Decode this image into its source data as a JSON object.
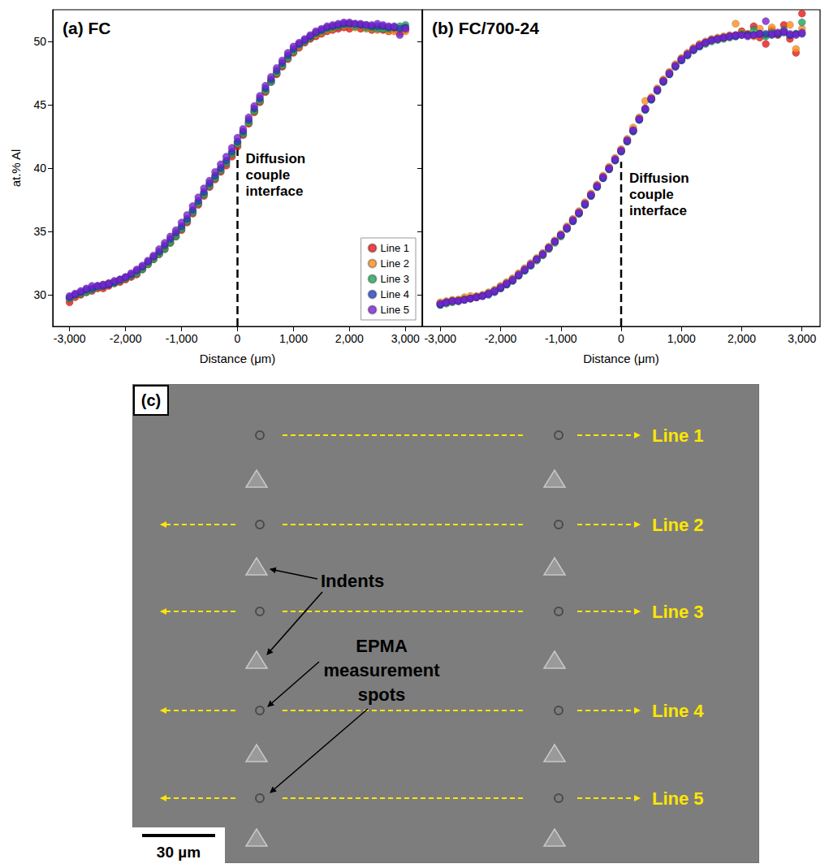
{
  "chart_data": [
    {
      "type": "scatter",
      "title": "(a) FC",
      "x_label": "Distance (μm)",
      "y_label": "at.% Al",
      "xlim": [
        -3300,
        3300
      ],
      "xticks": [
        -3000,
        -2000,
        -1000,
        0,
        1000,
        2000,
        3000
      ],
      "ylim": [
        27.5,
        52.5
      ],
      "yticks": [
        30,
        35,
        40,
        45,
        50
      ],
      "marker": "circle",
      "legend": "bottom-right",
      "annotation": {
        "text": "Diffusion couple interface",
        "x": 0,
        "y_end": 42,
        "line_style": "dashed"
      },
      "x": [
        -3000,
        -2900,
        -2800,
        -2700,
        -2600,
        -2500,
        -2400,
        -2300,
        -2200,
        -2100,
        -2000,
        -1900,
        -1800,
        -1700,
        -1600,
        -1500,
        -1400,
        -1300,
        -1200,
        -1100,
        -1000,
        -900,
        -800,
        -700,
        -600,
        -500,
        -400,
        -300,
        -200,
        -100,
        0,
        100,
        200,
        300,
        400,
        500,
        600,
        700,
        800,
        900,
        1000,
        1100,
        1200,
        1300,
        1400,
        1500,
        1600,
        1700,
        1800,
        1900,
        2000,
        2100,
        2200,
        2300,
        2400,
        2500,
        2600,
        2700,
        2800,
        2900,
        3000
      ],
      "series": [
        {
          "name": "Line 1",
          "color": "#e8161b",
          "values": [
            29.4,
            29.8,
            30.0,
            30.2,
            30.3,
            30.5,
            30.5,
            30.7,
            30.9,
            31.0,
            31.2,
            31.4,
            31.6,
            32.0,
            32.4,
            32.8,
            33.2,
            33.6,
            34.1,
            34.6,
            35.1,
            35.7,
            36.4,
            37.1,
            37.8,
            38.5,
            39.1,
            39.7,
            40.2,
            40.9,
            41.7,
            42.6,
            43.5,
            44.4,
            45.2,
            46.0,
            46.8,
            47.4,
            48.0,
            48.6,
            49.1,
            49.5,
            49.9,
            50.2,
            50.4,
            50.6,
            50.8,
            50.9,
            51.0,
            51.1,
            51.0,
            51.2,
            51.0,
            51.1,
            50.9,
            51.0,
            50.9,
            50.8,
            50.9,
            50.7,
            50.9
          ]
        },
        {
          "name": "Line 2",
          "color": "#ff8c1a",
          "values": [
            29.7,
            29.9,
            30.1,
            30.3,
            30.5,
            30.6,
            30.8,
            30.9,
            31.0,
            31.2,
            31.3,
            31.5,
            31.8,
            32.1,
            32.5,
            32.9,
            33.3,
            33.8,
            34.3,
            34.8,
            35.3,
            35.9,
            36.6,
            37.3,
            38.0,
            38.7,
            39.3,
            39.9,
            40.5,
            41.2,
            42.0,
            42.8,
            43.6,
            44.5,
            45.3,
            46.1,
            46.9,
            47.5,
            48.1,
            48.7,
            49.2,
            49.6,
            50.0,
            50.3,
            50.5,
            50.7,
            50.9,
            51.0,
            51.2,
            51.2,
            51.3,
            51.1,
            51.2,
            51.0,
            51.0,
            50.9,
            51.0,
            50.8,
            50.8,
            50.7,
            50.8
          ]
        },
        {
          "name": "Line 3",
          "color": "#1fa35b",
          "values": [
            29.7,
            30.0,
            30.1,
            30.2,
            30.4,
            30.6,
            30.7,
            30.9,
            30.9,
            31.1,
            31.3,
            31.5,
            31.7,
            32.0,
            32.4,
            32.8,
            33.2,
            33.6,
            34.1,
            34.6,
            35.2,
            35.8,
            36.5,
            37.2,
            37.9,
            38.6,
            39.2,
            39.8,
            40.4,
            41.1,
            41.9,
            42.7,
            43.6,
            44.5,
            45.3,
            46.1,
            46.8,
            47.5,
            48.1,
            48.7,
            49.2,
            49.7,
            50.0,
            50.3,
            50.6,
            50.8,
            51.0,
            51.1,
            51.2,
            51.3,
            51.4,
            51.2,
            51.3,
            51.1,
            51.1,
            51.0,
            51.0,
            51.0,
            51.1,
            51.2,
            51.3
          ]
        },
        {
          "name": "Line 4",
          "color": "#1f3fbf",
          "values": [
            29.8,
            30.0,
            30.2,
            30.4,
            30.5,
            30.7,
            30.7,
            30.8,
            31.0,
            31.2,
            31.4,
            31.6,
            31.9,
            32.2,
            32.6,
            33.0,
            33.4,
            33.9,
            34.4,
            34.9,
            35.4,
            36.0,
            36.7,
            37.4,
            38.1,
            38.8,
            39.4,
            40.0,
            40.6,
            41.3,
            42.1,
            42.9,
            43.8,
            44.7,
            45.5,
            46.3,
            47.0,
            47.7,
            48.3,
            48.9,
            49.4,
            49.8,
            50.1,
            50.4,
            50.7,
            50.9,
            51.1,
            51.2,
            51.3,
            51.4,
            51.4,
            51.4,
            51.3,
            51.3,
            51.2,
            51.2,
            51.2,
            51.1,
            51.1,
            51.0,
            51.1
          ]
        },
        {
          "name": "Line 5",
          "color": "#7b1fd1",
          "values": [
            29.9,
            30.1,
            30.3,
            30.5,
            30.7,
            30.7,
            30.8,
            30.9,
            31.1,
            31.2,
            31.4,
            31.7,
            32.0,
            32.3,
            32.7,
            33.1,
            33.6,
            34.1,
            34.6,
            35.1,
            35.7,
            36.3,
            37.0,
            37.7,
            38.4,
            39.0,
            39.7,
            40.3,
            40.9,
            41.6,
            42.4,
            43.1,
            44.0,
            44.9,
            45.7,
            46.5,
            47.2,
            47.9,
            48.5,
            49.1,
            49.6,
            49.9,
            50.2,
            50.5,
            50.8,
            51.0,
            51.2,
            51.3,
            51.4,
            51.5,
            51.5,
            51.4,
            51.4,
            51.3,
            51.3,
            51.4,
            51.3,
            51.2,
            51.2,
            50.5,
            51.0
          ]
        }
      ]
    },
    {
      "type": "scatter",
      "title": "(b) FC/700-24",
      "x_label": "Distance (μm)",
      "xlim": [
        -3300,
        3300
      ],
      "xticks": [
        -3000,
        -2000,
        -1000,
        0,
        1000,
        2000,
        3000
      ],
      "ylim": [
        27.5,
        52.5
      ],
      "yticks": [
        30,
        35,
        40,
        45,
        50
      ],
      "marker": "circle",
      "tick_labels": "x",
      "annotation": {
        "text": "Diffusion couple interface",
        "x": 0,
        "y_end": 40.5,
        "line_style": "dashed"
      },
      "x": [
        -3000,
        -2900,
        -2800,
        -2700,
        -2600,
        -2500,
        -2400,
        -2300,
        -2200,
        -2100,
        -2000,
        -1900,
        -1800,
        -1700,
        -1600,
        -1500,
        -1400,
        -1300,
        -1200,
        -1100,
        -1000,
        -900,
        -800,
        -700,
        -600,
        -500,
        -400,
        -300,
        -200,
        -100,
        0,
        100,
        200,
        300,
        400,
        500,
        600,
        700,
        800,
        900,
        1000,
        1100,
        1200,
        1300,
        1400,
        1500,
        1600,
        1700,
        1800,
        1900,
        2000,
        2100,
        2200,
        2300,
        2400,
        2500,
        2600,
        2700,
        2800,
        2900,
        3000
      ],
      "series": [
        {
          "name": "Line 1",
          "color": "#e8161b",
          "values": [
            29.3,
            29.4,
            29.5,
            29.6,
            29.7,
            29.7,
            29.8,
            29.9,
            30.1,
            30.3,
            30.6,
            30.9,
            31.2,
            31.6,
            32.0,
            32.4,
            32.8,
            33.2,
            33.7,
            34.2,
            34.7,
            35.3,
            35.9,
            36.5,
            37.2,
            37.9,
            38.6,
            39.3,
            40.0,
            40.7,
            41.4,
            42.2,
            43.0,
            43.9,
            44.7,
            45.5,
            46.2,
            46.9,
            47.5,
            48.1,
            48.6,
            49.0,
            49.4,
            49.7,
            49.9,
            50.1,
            50.2,
            50.3,
            50.4,
            50.5,
            50.8,
            50.6,
            51.2,
            50.3,
            49.8,
            50.9,
            50.5,
            51.3,
            50.2,
            49.1,
            52.2
          ]
        },
        {
          "name": "Line 2",
          "color": "#ff8c1a",
          "values": [
            29.4,
            29.5,
            29.6,
            29.6,
            29.8,
            29.9,
            29.9,
            30.0,
            30.2,
            30.4,
            30.7,
            31.0,
            31.3,
            31.7,
            32.1,
            32.5,
            32.9,
            33.3,
            33.8,
            34.3,
            34.8,
            35.4,
            36.0,
            36.6,
            37.3,
            38.0,
            38.7,
            39.4,
            40.1,
            40.8,
            41.5,
            42.3,
            43.2,
            44.0,
            45.3,
            45.6,
            46.3,
            47.0,
            47.6,
            48.2,
            48.7,
            49.1,
            49.5,
            49.8,
            50.0,
            50.2,
            50.3,
            50.4,
            50.5,
            51.4,
            50.7,
            50.5,
            50.4,
            51.0,
            50.5,
            51.1,
            50.6,
            50.8,
            51.3,
            49.4,
            51.0
          ]
        },
        {
          "name": "Line 3",
          "color": "#1fa35b",
          "values": [
            29.2,
            29.3,
            29.4,
            29.5,
            29.6,
            29.7,
            29.8,
            29.9,
            30.1,
            30.3,
            30.5,
            30.8,
            31.1,
            31.5,
            31.9,
            32.3,
            32.7,
            33.1,
            33.6,
            34.1,
            34.6,
            35.2,
            35.8,
            36.4,
            37.1,
            37.8,
            38.5,
            39.2,
            39.9,
            40.6,
            41.3,
            42.1,
            42.9,
            43.8,
            44.6,
            45.4,
            46.1,
            46.8,
            47.4,
            48.0,
            48.5,
            48.9,
            49.3,
            49.6,
            49.8,
            50.0,
            50.1,
            50.2,
            50.3,
            50.4,
            50.6,
            50.5,
            50.9,
            50.6,
            50.4,
            50.7,
            50.6,
            50.9,
            50.5,
            50.6,
            51.5
          ]
        },
        {
          "name": "Line 4",
          "color": "#1f3fbf",
          "values": [
            29.2,
            29.4,
            29.5,
            29.5,
            29.6,
            29.7,
            29.8,
            29.9,
            30.0,
            30.2,
            30.5,
            30.8,
            31.1,
            31.5,
            31.9,
            32.3,
            32.8,
            33.2,
            33.7,
            34.2,
            34.7,
            35.2,
            35.8,
            36.4,
            37.1,
            37.8,
            38.5,
            39.2,
            39.9,
            40.6,
            41.3,
            42.1,
            42.9,
            43.8,
            44.6,
            45.4,
            46.1,
            46.8,
            47.4,
            48.0,
            48.5,
            48.9,
            49.3,
            49.6,
            49.9,
            50.1,
            50.2,
            50.3,
            50.4,
            50.4,
            50.5,
            50.5,
            50.5,
            50.6,
            50.6,
            50.5,
            50.6,
            50.7,
            50.5,
            50.6,
            50.6
          ]
        },
        {
          "name": "Line 5",
          "color": "#7b1fd1",
          "values": [
            29.3,
            29.4,
            29.5,
            29.5,
            29.6,
            29.7,
            29.8,
            29.9,
            30.1,
            30.3,
            30.6,
            30.9,
            31.2,
            31.6,
            32.0,
            32.4,
            32.8,
            33.2,
            33.7,
            34.2,
            34.7,
            35.3,
            35.9,
            36.5,
            37.2,
            37.9,
            38.6,
            39.3,
            40.0,
            40.7,
            41.4,
            42.2,
            43.0,
            43.9,
            44.7,
            45.5,
            46.2,
            46.9,
            47.5,
            48.1,
            48.6,
            49.0,
            49.4,
            49.7,
            49.9,
            50.1,
            50.2,
            50.3,
            50.4,
            50.5,
            50.5,
            50.4,
            50.5,
            50.6,
            51.6,
            50.6,
            50.7,
            50.8,
            50.6,
            50.5,
            50.7
          ]
        }
      ]
    }
  ],
  "image": {
    "label": "(c)",
    "lines": [
      "Line 1",
      "Line 2",
      "Line 3",
      "Line 4",
      "Line 5"
    ],
    "callouts": [
      "Indents",
      "EPMA measurement spots"
    ],
    "scale_bar": "30 µm"
  }
}
